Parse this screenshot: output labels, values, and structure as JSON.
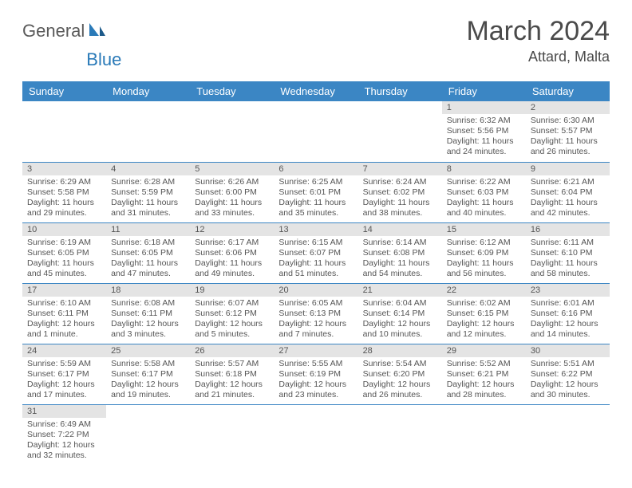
{
  "logo": {
    "part1": "General",
    "part2": "Blue"
  },
  "title": "March 2024",
  "location": "Attard, Malta",
  "colors": {
    "header_bg": "#3b86c4",
    "header_text": "#ffffff",
    "day_num_bg": "#e4e4e4",
    "border": "#3b86c4",
    "text": "#555555",
    "title_text": "#4a4a4a",
    "logo_gray": "#5a5a5a",
    "logo_blue": "#2a7ab8"
  },
  "day_names": [
    "Sunday",
    "Monday",
    "Tuesday",
    "Wednesday",
    "Thursday",
    "Friday",
    "Saturday"
  ],
  "weeks": [
    [
      null,
      null,
      null,
      null,
      null,
      {
        "n": "1",
        "sr": "Sunrise: 6:32 AM",
        "ss": "Sunset: 5:56 PM",
        "dl": "Daylight: 11 hours and 24 minutes."
      },
      {
        "n": "2",
        "sr": "Sunrise: 6:30 AM",
        "ss": "Sunset: 5:57 PM",
        "dl": "Daylight: 11 hours and 26 minutes."
      }
    ],
    [
      {
        "n": "3",
        "sr": "Sunrise: 6:29 AM",
        "ss": "Sunset: 5:58 PM",
        "dl": "Daylight: 11 hours and 29 minutes."
      },
      {
        "n": "4",
        "sr": "Sunrise: 6:28 AM",
        "ss": "Sunset: 5:59 PM",
        "dl": "Daylight: 11 hours and 31 minutes."
      },
      {
        "n": "5",
        "sr": "Sunrise: 6:26 AM",
        "ss": "Sunset: 6:00 PM",
        "dl": "Daylight: 11 hours and 33 minutes."
      },
      {
        "n": "6",
        "sr": "Sunrise: 6:25 AM",
        "ss": "Sunset: 6:01 PM",
        "dl": "Daylight: 11 hours and 35 minutes."
      },
      {
        "n": "7",
        "sr": "Sunrise: 6:24 AM",
        "ss": "Sunset: 6:02 PM",
        "dl": "Daylight: 11 hours and 38 minutes."
      },
      {
        "n": "8",
        "sr": "Sunrise: 6:22 AM",
        "ss": "Sunset: 6:03 PM",
        "dl": "Daylight: 11 hours and 40 minutes."
      },
      {
        "n": "9",
        "sr": "Sunrise: 6:21 AM",
        "ss": "Sunset: 6:04 PM",
        "dl": "Daylight: 11 hours and 42 minutes."
      }
    ],
    [
      {
        "n": "10",
        "sr": "Sunrise: 6:19 AM",
        "ss": "Sunset: 6:05 PM",
        "dl": "Daylight: 11 hours and 45 minutes."
      },
      {
        "n": "11",
        "sr": "Sunrise: 6:18 AM",
        "ss": "Sunset: 6:05 PM",
        "dl": "Daylight: 11 hours and 47 minutes."
      },
      {
        "n": "12",
        "sr": "Sunrise: 6:17 AM",
        "ss": "Sunset: 6:06 PM",
        "dl": "Daylight: 11 hours and 49 minutes."
      },
      {
        "n": "13",
        "sr": "Sunrise: 6:15 AM",
        "ss": "Sunset: 6:07 PM",
        "dl": "Daylight: 11 hours and 51 minutes."
      },
      {
        "n": "14",
        "sr": "Sunrise: 6:14 AM",
        "ss": "Sunset: 6:08 PM",
        "dl": "Daylight: 11 hours and 54 minutes."
      },
      {
        "n": "15",
        "sr": "Sunrise: 6:12 AM",
        "ss": "Sunset: 6:09 PM",
        "dl": "Daylight: 11 hours and 56 minutes."
      },
      {
        "n": "16",
        "sr": "Sunrise: 6:11 AM",
        "ss": "Sunset: 6:10 PM",
        "dl": "Daylight: 11 hours and 58 minutes."
      }
    ],
    [
      {
        "n": "17",
        "sr": "Sunrise: 6:10 AM",
        "ss": "Sunset: 6:11 PM",
        "dl": "Daylight: 12 hours and 1 minute."
      },
      {
        "n": "18",
        "sr": "Sunrise: 6:08 AM",
        "ss": "Sunset: 6:11 PM",
        "dl": "Daylight: 12 hours and 3 minutes."
      },
      {
        "n": "19",
        "sr": "Sunrise: 6:07 AM",
        "ss": "Sunset: 6:12 PM",
        "dl": "Daylight: 12 hours and 5 minutes."
      },
      {
        "n": "20",
        "sr": "Sunrise: 6:05 AM",
        "ss": "Sunset: 6:13 PM",
        "dl": "Daylight: 12 hours and 7 minutes."
      },
      {
        "n": "21",
        "sr": "Sunrise: 6:04 AM",
        "ss": "Sunset: 6:14 PM",
        "dl": "Daylight: 12 hours and 10 minutes."
      },
      {
        "n": "22",
        "sr": "Sunrise: 6:02 AM",
        "ss": "Sunset: 6:15 PM",
        "dl": "Daylight: 12 hours and 12 minutes."
      },
      {
        "n": "23",
        "sr": "Sunrise: 6:01 AM",
        "ss": "Sunset: 6:16 PM",
        "dl": "Daylight: 12 hours and 14 minutes."
      }
    ],
    [
      {
        "n": "24",
        "sr": "Sunrise: 5:59 AM",
        "ss": "Sunset: 6:17 PM",
        "dl": "Daylight: 12 hours and 17 minutes."
      },
      {
        "n": "25",
        "sr": "Sunrise: 5:58 AM",
        "ss": "Sunset: 6:17 PM",
        "dl": "Daylight: 12 hours and 19 minutes."
      },
      {
        "n": "26",
        "sr": "Sunrise: 5:57 AM",
        "ss": "Sunset: 6:18 PM",
        "dl": "Daylight: 12 hours and 21 minutes."
      },
      {
        "n": "27",
        "sr": "Sunrise: 5:55 AM",
        "ss": "Sunset: 6:19 PM",
        "dl": "Daylight: 12 hours and 23 minutes."
      },
      {
        "n": "28",
        "sr": "Sunrise: 5:54 AM",
        "ss": "Sunset: 6:20 PM",
        "dl": "Daylight: 12 hours and 26 minutes."
      },
      {
        "n": "29",
        "sr": "Sunrise: 5:52 AM",
        "ss": "Sunset: 6:21 PM",
        "dl": "Daylight: 12 hours and 28 minutes."
      },
      {
        "n": "30",
        "sr": "Sunrise: 5:51 AM",
        "ss": "Sunset: 6:22 PM",
        "dl": "Daylight: 12 hours and 30 minutes."
      }
    ],
    [
      {
        "n": "31",
        "sr": "Sunrise: 6:49 AM",
        "ss": "Sunset: 7:22 PM",
        "dl": "Daylight: 12 hours and 32 minutes."
      },
      null,
      null,
      null,
      null,
      null,
      null
    ]
  ]
}
